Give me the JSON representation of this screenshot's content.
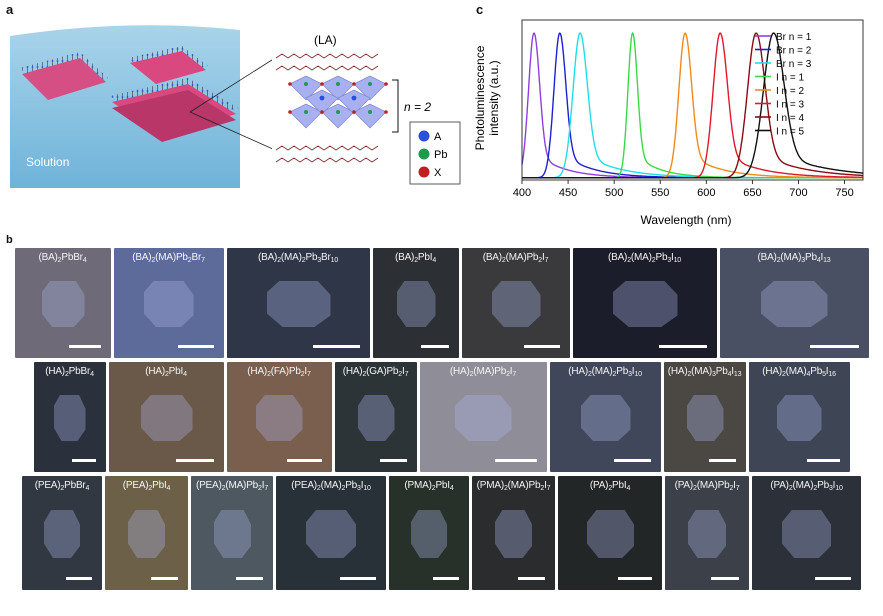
{
  "panel_a": {
    "letter": "a",
    "solution_label": "Solution",
    "la_label": "(LA)",
    "n_label": "n = 2",
    "legend": [
      {
        "symbol": "A",
        "color": "#2a4fd8"
      },
      {
        "symbol": "Pb",
        "color": "#1f9a4a"
      },
      {
        "symbol": "X",
        "color": "#c22020"
      }
    ]
  },
  "panel_b": {
    "letter": "b",
    "rows": [
      [
        {
          "label": "(BA)2PbBr4",
          "bg": "#6e6a78"
        },
        {
          "label": "(BA)2(MA)Pb2Br7",
          "bg": "#5d6b9a"
        },
        {
          "label": "(BA)2(MA)2Pb3Br10",
          "bg": "#2e3648"
        },
        {
          "label": "(BA)2PbI4",
          "bg": "#2c2f33"
        },
        {
          "label": "(BA)2(MA)Pb2I7",
          "bg": "#3a3a3c"
        },
        {
          "label": "(BA)2(MA)2Pb3I10",
          "bg": "#1c1d2b"
        },
        {
          "label": "(BA)2(MA)3Pb4I13",
          "bg": "#4a5064"
        }
      ],
      [
        {
          "label": "(HA)2PbBr4",
          "bg": "#2b313c"
        },
        {
          "label": "(HA)2PbI4",
          "bg": "#6a5848"
        },
        {
          "label": "(HA)2(FA)Pb2I7",
          "bg": "#7a5f4e"
        },
        {
          "label": "(HA)2(GA)Pb2I7",
          "bg": "#2c3438"
        },
        {
          "label": "(HA)2(MA)Pb2I7",
          "bg": "#8f8e98"
        },
        {
          "label": "(HA)2(MA)2Pb3I10",
          "bg": "#40475a"
        },
        {
          "label": "(HA)2(MA)3Pb4I13",
          "bg": "#4b4844"
        },
        {
          "label": "(HA)2(MA)4Pb5I16",
          "bg": "#3e4656"
        }
      ],
      [
        {
          "label": "(PEA)2PbBr4",
          "bg": "#323842"
        },
        {
          "label": "(PEA)2PbI4",
          "bg": "#6d6048"
        },
        {
          "label": "(PEA)2(MA)Pb2I7",
          "bg": "#4e5860"
        },
        {
          "label": "(PEA)2(MA)2Pb3I10",
          "bg": "#283038"
        },
        {
          "label": "(PMA)2PbI4",
          "bg": "#28302a"
        },
        {
          "label": "(PMA)2(MA)Pb2I7",
          "bg": "#2a2c2e"
        },
        {
          "label": "(PA)2PbI4",
          "bg": "#232626"
        },
        {
          "label": "(PA)2(MA)Pb2I7",
          "bg": "#3c4048"
        },
        {
          "label": "(PA)2(MA)2Pb3I10",
          "bg": "#2c3038"
        }
      ]
    ]
  },
  "panel_c": {
    "letter": "c"
  },
  "chart_data": {
    "type": "line",
    "xlabel": "Wavelength (nm)",
    "ylabel": "Photoluminescence intensity (a.u.)",
    "xlim": [
      400,
      770
    ],
    "xticks": [
      400,
      450,
      500,
      550,
      600,
      650,
      700,
      750
    ],
    "ylim": [
      0,
      1.05
    ],
    "legend_position": "top-right",
    "series": [
      {
        "name": "Br n = 1",
        "peak": 413,
        "fwhm": 14,
        "color": "#8e3fe0"
      },
      {
        "name": "Br n = 2",
        "peak": 441,
        "fwhm": 15,
        "color": "#1f1fd0"
      },
      {
        "name": "Br n = 3",
        "peak": 463,
        "fwhm": 18,
        "color": "#1ee0ea"
      },
      {
        "name": "I n = 1",
        "peak": 520,
        "fwhm": 12,
        "color": "#3cd84a"
      },
      {
        "name": "I n = 2",
        "peak": 577,
        "fwhm": 16,
        "color": "#f08a1a"
      },
      {
        "name": "I n = 3",
        "peak": 615,
        "fwhm": 18,
        "color": "#e0182a"
      },
      {
        "name": "I n = 4",
        "peak": 654,
        "fwhm": 22,
        "color": "#8a0a12"
      },
      {
        "name": "I n = 5",
        "peak": 673,
        "fwhm": 26,
        "color": "#111111"
      }
    ]
  }
}
